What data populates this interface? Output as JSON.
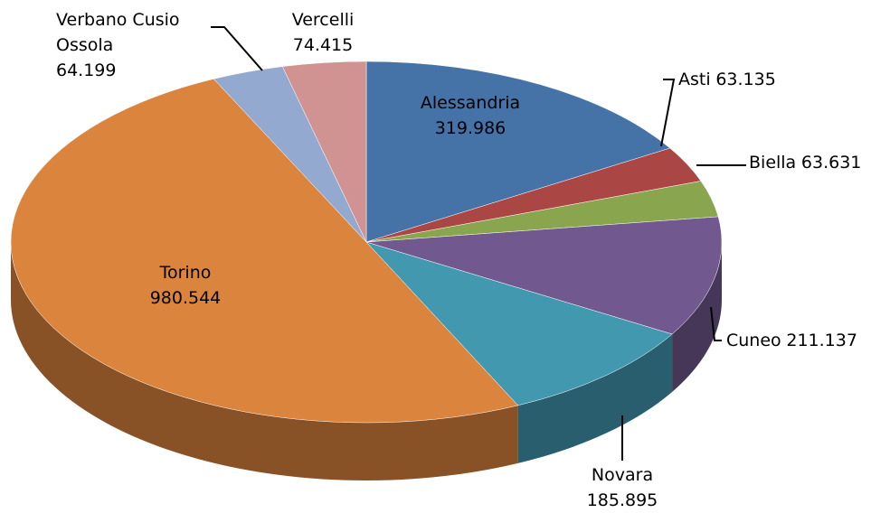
{
  "chart_data": {
    "type": "pie",
    "categories": [
      "Alessandria",
      "Asti",
      "Biella",
      "Cuneo",
      "Novara",
      "Torino",
      "Verbano Cusio Ossola",
      "Vercelli"
    ],
    "values": [
      319986,
      63135,
      63631,
      211137,
      185895,
      980544,
      64199,
      74415
    ],
    "value_labels": [
      "319.986",
      "63.135",
      "63.631",
      "211.137",
      "185.895",
      "980.544",
      "64.199",
      "74.415"
    ],
    "colors": [
      "#4572a7",
      "#aa4643",
      "#89a54e",
      "#71588f",
      "#4198af",
      "#db843d",
      "#93a9cf",
      "#d19392"
    ]
  }
}
